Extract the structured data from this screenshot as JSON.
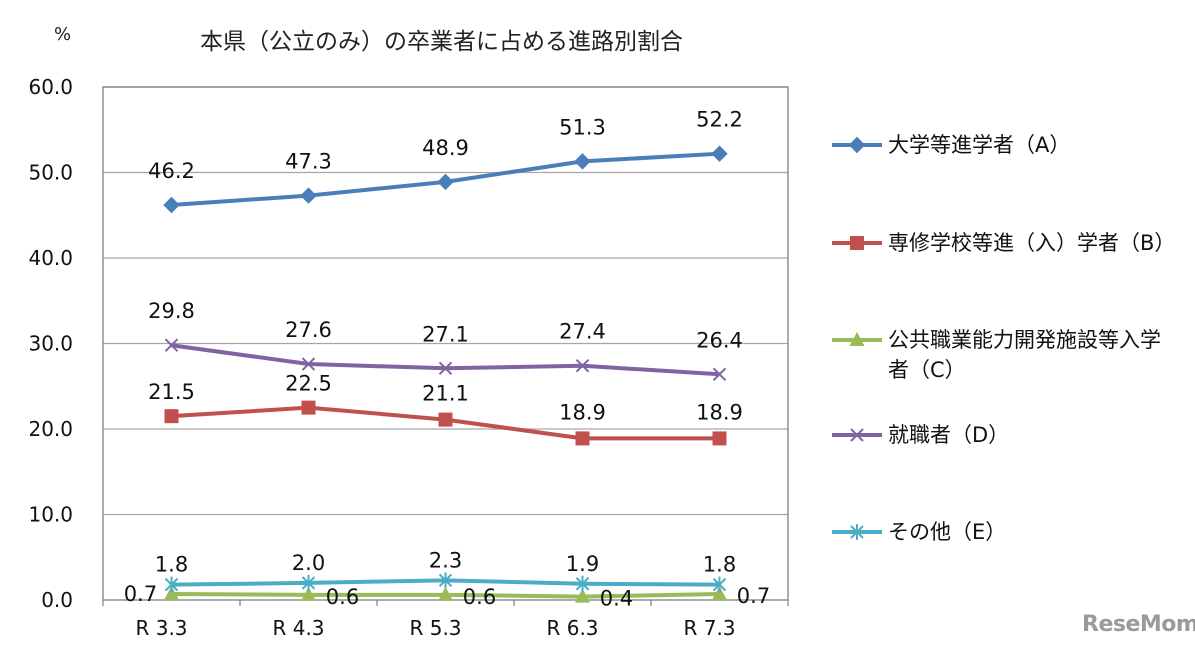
{
  "title": "本県（公立のみ）の卒業者に占める進路別割合",
  "unit": "%",
  "watermark": "ReseMom",
  "chart_data": {
    "type": "line",
    "title": "本県（公立のみ）の卒業者に占める進路別割合",
    "ylabel": "%",
    "xlabel": "",
    "categories": [
      "R 3.3",
      "R 4.3",
      "R 5.3",
      "R 6.3",
      "R 7.3"
    ],
    "ylim": [
      0,
      60
    ],
    "yticks": [
      "0.0",
      "10.0",
      "20.0",
      "30.0",
      "40.0",
      "50.0",
      "60.0"
    ],
    "grid": true,
    "legend_position": "right",
    "series": [
      {
        "name": "大学等進学者（A）",
        "values": [
          46.2,
          47.3,
          48.9,
          51.3,
          52.2
        ],
        "labels": [
          "46.2",
          "47.3",
          "48.9",
          "51.3",
          "52.2"
        ],
        "color": "#4a7ebb",
        "marker": "diamond"
      },
      {
        "name": "専修学校等進（入）学者（B）",
        "values": [
          21.5,
          22.5,
          21.1,
          18.9,
          18.9
        ],
        "labels": [
          "21.5",
          "22.5",
          "21.1",
          "18.9",
          "18.9"
        ],
        "color": "#c0504d",
        "marker": "square"
      },
      {
        "name": "公共職業能力開発施設等入学者（C）",
        "values": [
          0.7,
          0.6,
          0.6,
          0.4,
          0.7
        ],
        "labels": [
          "0.7",
          "0.6",
          "0.6",
          "0.4",
          "0.7"
        ],
        "color": "#9bbb59",
        "marker": "triangle"
      },
      {
        "name": "就職者（D）",
        "values": [
          29.8,
          27.6,
          27.1,
          27.4,
          26.4
        ],
        "labels": [
          "29.8",
          "27.6",
          "27.1",
          "27.4",
          "26.4"
        ],
        "color": "#8064a2",
        "marker": "x"
      },
      {
        "name": "その他（E）",
        "values": [
          1.8,
          2.0,
          2.3,
          1.9,
          1.8
        ],
        "labels": [
          "1.8",
          "2.0",
          "2.3",
          "1.9",
          "1.8"
        ],
        "color": "#4bacc6",
        "marker": "star"
      }
    ]
  }
}
